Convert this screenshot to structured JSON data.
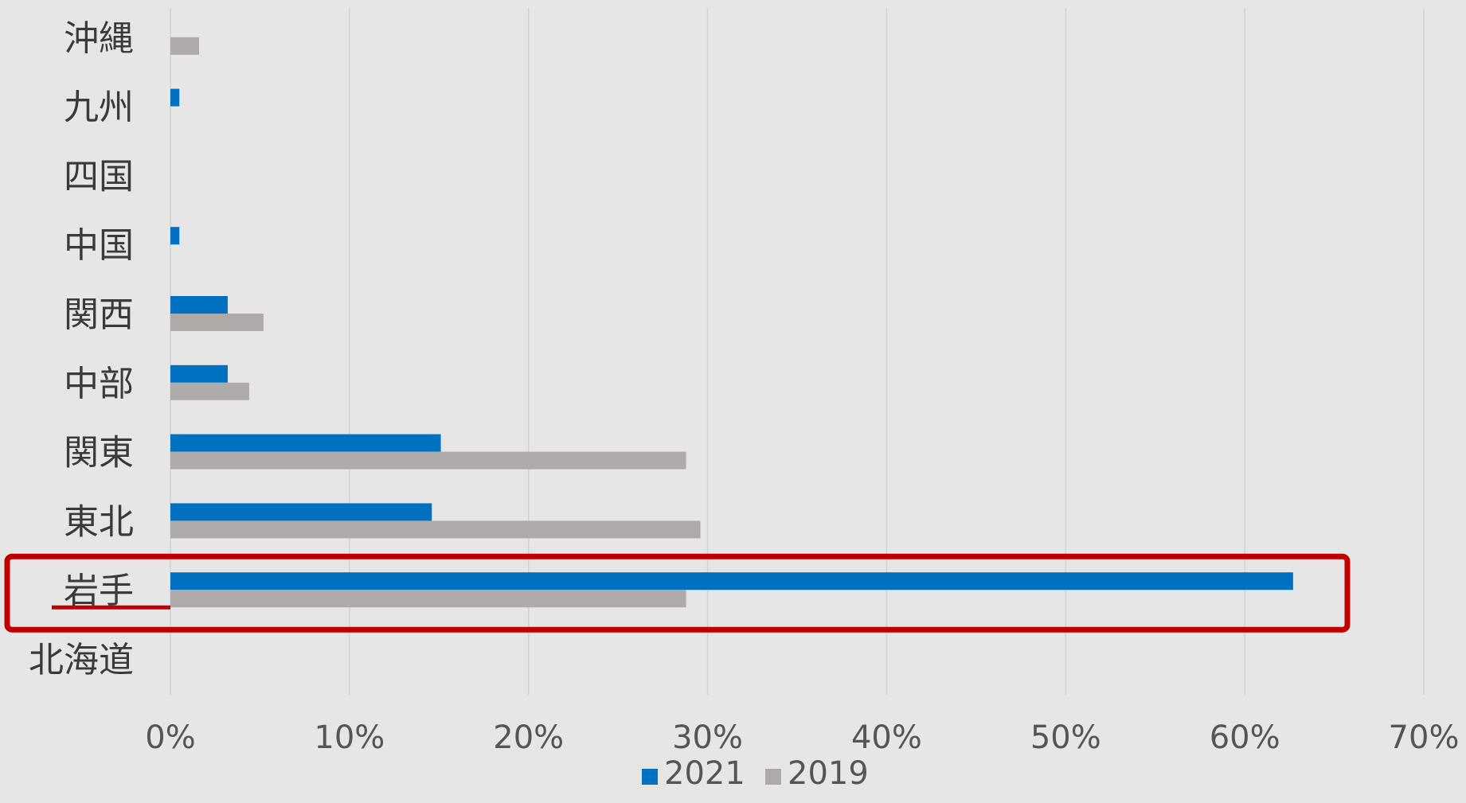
{
  "chart_data": {
    "type": "bar",
    "orientation": "horizontal",
    "categories": [
      "北海道",
      "岩手",
      "東北",
      "関東",
      "中部",
      "関西",
      "中国",
      "四国",
      "九州",
      "沖縄"
    ],
    "series": [
      {
        "name": "2021",
        "color": "#0070c0",
        "values": [
          0,
          62.7,
          14.6,
          15.1,
          3.2,
          3.2,
          0.5,
          0,
          0.5,
          0
        ]
      },
      {
        "name": "2019",
        "color": "#aeaaaa",
        "values": [
          0,
          28.8,
          29.6,
          28.8,
          4.4,
          5.2,
          0,
          0,
          0,
          1.6
        ]
      }
    ],
    "xlim": [
      0,
      70
    ],
    "x_ticks": [
      "0%",
      "10%",
      "20%",
      "30%",
      "40%",
      "50%",
      "60%",
      "70%"
    ],
    "grid": true,
    "legend_position": "bottom",
    "highlight": {
      "category": "岩手",
      "color": "#c00000"
    }
  }
}
